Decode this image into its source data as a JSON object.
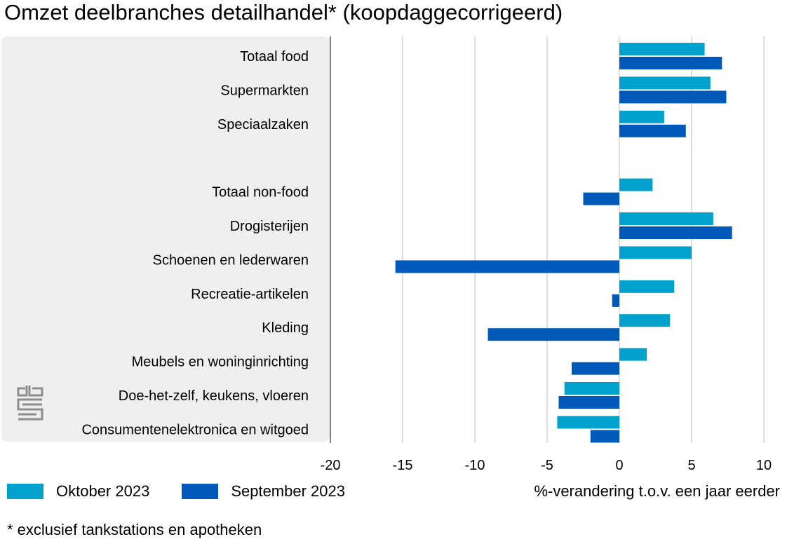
{
  "title": "Omzet deelbranches detailhandel* (koopdaggecorrigeerd)",
  "footnote": "* exclusief tankstations en apotheken",
  "colors": {
    "oktober": "#00a1cd",
    "september": "#0058b8",
    "panel": "#efefef",
    "grid": "#bfbfbf"
  },
  "logo_icon": "cbs-logo-icon",
  "chart_data": {
    "type": "bar",
    "orientation": "horizontal",
    "title": "Omzet deelbranches detailhandel* (koopdaggecorrigeerd)",
    "xlabel": "%-verandering t.o.v. een jaar eerder",
    "ylabel": "",
    "xlim": [
      -20,
      10
    ],
    "xticks": [
      -20,
      -15,
      -10,
      -5,
      0,
      5,
      10
    ],
    "grid": true,
    "legend_position": "bottom-left",
    "categories": [
      "Totaal food",
      "Supermarkten",
      "Speciaalzaken",
      "",
      "Totaal non-food",
      "Drogisterijen",
      "Schoenen en lederwaren",
      "Recreatie-artikelen",
      "Kleding",
      "Meubels en woninginrichting",
      "Doe-het-zelf, keukens, vloeren",
      "Consumentenelektronica en witgoed"
    ],
    "series": [
      {
        "name": "Oktober 2023",
        "color": "#00a1cd",
        "values": [
          5.9,
          6.3,
          3.1,
          null,
          2.3,
          6.5,
          5.0,
          3.8,
          3.5,
          1.9,
          -3.8,
          -4.3
        ]
      },
      {
        "name": "September 2023",
        "color": "#0058b8",
        "values": [
          7.1,
          7.4,
          4.6,
          null,
          -2.5,
          7.8,
          -15.5,
          -0.5,
          -9.1,
          -3.3,
          -4.2,
          -2.0
        ]
      }
    ]
  }
}
